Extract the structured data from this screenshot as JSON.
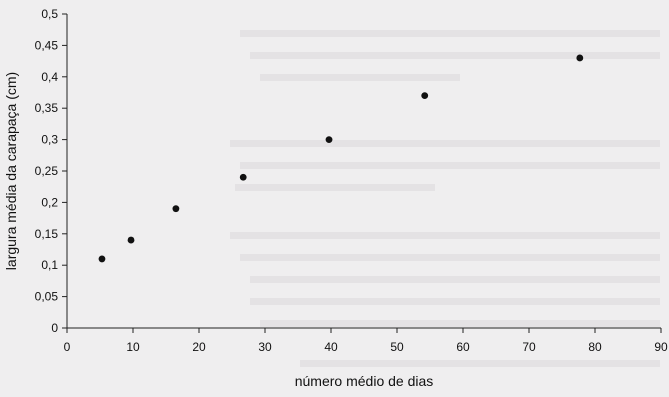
{
  "chart_data": {
    "type": "scatter",
    "xlabel": "número médio de dias",
    "ylabel": "largura média da carapaça (cm)",
    "xlim": [
      0,
      90
    ],
    "ylim": [
      0,
      0.5
    ],
    "x_ticks": [
      "0",
      "10",
      "20",
      "30",
      "40",
      "50",
      "60",
      "70",
      "80",
      "90"
    ],
    "y_ticks": [
      "0",
      "0,05",
      "0,1",
      "0,15",
      "0,2",
      "0,25",
      "0,3",
      "0,35",
      "0,4",
      "0,45",
      "0,5"
    ],
    "grid": false,
    "legend": "none",
    "marker_color": "#111111",
    "series": [
      {
        "points": [
          {
            "x": 5.3,
            "y": 0.11
          },
          {
            "x": 9.7,
            "y": 0.14
          },
          {
            "x": 16.5,
            "y": 0.19
          },
          {
            "x": 26.7,
            "y": 0.24
          },
          {
            "x": 39.7,
            "y": 0.3
          },
          {
            "x": 54.2,
            "y": 0.37
          },
          {
            "x": 77.7,
            "y": 0.43
          }
        ]
      }
    ]
  }
}
